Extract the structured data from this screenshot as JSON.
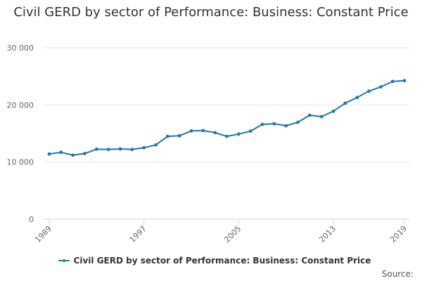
{
  "chart_data": {
    "type": "line",
    "title": "Civil GERD by sector of Performance: Business: Constant Price",
    "xlabel": "",
    "ylabel": "",
    "x": [
      1989,
      1990,
      1991,
      1992,
      1993,
      1994,
      1995,
      1996,
      1997,
      1998,
      1999,
      2000,
      2001,
      2002,
      2003,
      2004,
      2005,
      2006,
      2007,
      2008,
      2009,
      2010,
      2011,
      2012,
      2013,
      2014,
      2015,
      2016,
      2017,
      2018,
      2019
    ],
    "series": [
      {
        "name": "Civil GERD by sector of Performance: Business: Constant Price",
        "values": [
          11400,
          11700,
          11200,
          11500,
          12250,
          12200,
          12300,
          12200,
          12500,
          13000,
          14500,
          14600,
          15450,
          15500,
          15150,
          14500,
          14900,
          15400,
          16600,
          16700,
          16350,
          16950,
          18200,
          17950,
          18900,
          20300,
          21300,
          22400,
          23150,
          24100,
          24250
        ]
      }
    ],
    "xticks": [
      "1989",
      "1997",
      "2005",
      "2013",
      "2019"
    ],
    "yticks": [
      "0",
      "10 000",
      "20 000",
      "30 000"
    ],
    "ylim": [
      0,
      30000
    ],
    "xlim": [
      1989,
      2019
    ],
    "grid": true,
    "legend_position": "bottom",
    "colors": {
      "series": "#1f77b4",
      "grid": "#e6e6e6",
      "axis": "#ccd6eb",
      "text": "#666666"
    }
  },
  "source_label": "Source:"
}
